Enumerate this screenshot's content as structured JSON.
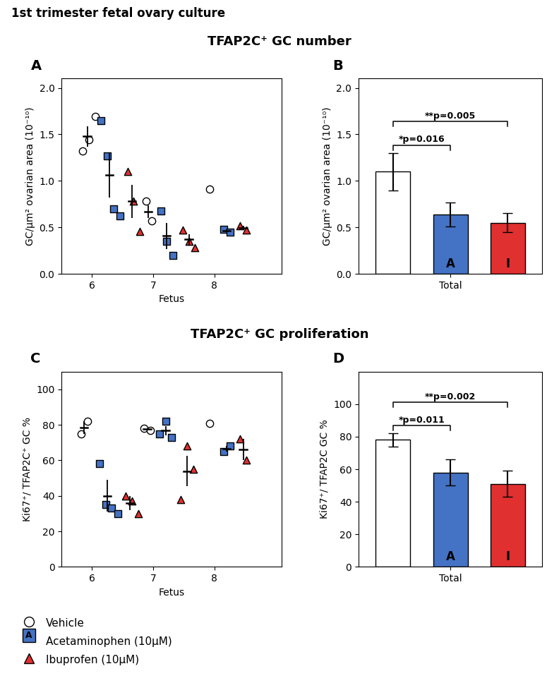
{
  "title": "1st trimester fetal ovary culture",
  "chart_data": [
    {
      "type": "scatter",
      "panel_label": "A",
      "subtitle": "TFAP2C⁺ GC number",
      "x_label": "Fetus",
      "y_label": "GC/μm² ovarian area (10⁻¹⁰)",
      "xlim": [
        5.5,
        9.1
      ],
      "ylim": [
        0,
        2.1
      ],
      "xticks": [
        6,
        7,
        8
      ],
      "yticks": [
        {
          "value": 0,
          "label": "0.0"
        },
        {
          "value": 0.5,
          "label": "0.5"
        },
        {
          "value": 1.0,
          "label": "1.0"
        },
        {
          "value": 1.5,
          "label": "1.5"
        },
        {
          "value": 2.0,
          "label": "2.0"
        }
      ],
      "legend": "lower left",
      "series": [
        {
          "name": "Vehicle",
          "color": "#ffffff",
          "marker": "circle",
          "groups": [
            {
              "x": [
                5.85,
                5.95,
                6.05
              ],
              "y": [
                1.32,
                1.44,
                1.69
              ],
              "mean_x": 5.92,
              "mean": 1.48,
              "error": 0.11
            },
            {
              "x": [
                6.88,
                6.97
              ],
              "y": [
                0.78,
                0.57
              ],
              "mean_x": 6.92,
              "mean": 0.67,
              "error": 0.07
            },
            {
              "x": [
                7.92
              ],
              "y": [
                0.91
              ]
            }
          ]
        },
        {
          "name": "Acetaminophen (10μM)",
          "color": "#4472c4",
          "marker": "square",
          "symbol": "A",
          "groups": [
            {
              "x": [
                6.15,
                6.25,
                6.35,
                6.45
              ],
              "y": [
                1.65,
                1.27,
                0.7,
                0.62
              ],
              "mean_x": 6.28,
              "mean": 1.06,
              "error": 0.24
            },
            {
              "x": [
                7.12,
                7.22,
                7.32
              ],
              "y": [
                0.68,
                0.35,
                0.2
              ],
              "mean_x": 7.22,
              "mean": 0.41,
              "error": 0.14
            },
            {
              "x": [
                8.15,
                8.25
              ],
              "y": [
                0.48,
                0.45
              ],
              "mean_x": 8.2,
              "mean": 0.465,
              "error": 0.015
            }
          ]
        },
        {
          "name": "Ibuprofen (10μM)",
          "color": "#e03030",
          "marker": "triangle",
          "groups": [
            {
              "x": [
                6.58,
                6.68,
                6.78
              ],
              "y": [
                1.1,
                0.78,
                0.46
              ],
              "mean_x": 6.65,
              "mean": 0.78,
              "error": 0.18
            },
            {
              "x": [
                7.48,
                7.58,
                7.68
              ],
              "y": [
                0.47,
                0.35,
                0.28
              ],
              "mean_x": 7.58,
              "mean": 0.37,
              "error": 0.055
            },
            {
              "x": [
                8.42,
                8.52
              ],
              "y": [
                0.52,
                0.47
              ],
              "mean_x": 8.47,
              "mean": 0.495,
              "error": 0.025
            }
          ]
        }
      ]
    },
    {
      "type": "bar",
      "panel_label": "B",
      "y_label": "GC/μm² ovarian area (10⁻¹⁰)",
      "categories": [
        null,
        "Total",
        null
      ],
      "values": [
        1.1,
        0.64,
        0.55
      ],
      "errors": [
        0.2,
        0.13,
        0.1
      ],
      "colors": [
        "#ffffff",
        "#4472c4",
        "#e03030"
      ],
      "ylim": [
        0,
        2.1
      ],
      "yticks": [
        {
          "value": 0,
          "label": "0.0"
        },
        {
          "value": 0.5,
          "label": "0.5"
        },
        {
          "value": 1.0,
          "label": "1.0"
        },
        {
          "value": 1.5,
          "label": "1.5"
        },
        {
          "value": 2.0,
          "label": "2.0"
        }
      ],
      "annotations": [
        {
          "text": "A",
          "category": 1
        },
        {
          "text": "I",
          "category": 2
        },
        {
          "text": "*p=0.016",
          "between": [
            0,
            1
          ]
        },
        {
          "text": "**p=0.005",
          "between": [
            0,
            2
          ]
        }
      ]
    },
    {
      "type": "scatter",
      "panel_label": "C",
      "subtitle": "TFAP2C⁺ GC proliferation",
      "x_label": "Fetus",
      "y_label": "Ki67⁺/ TFAP2C⁺ GC %",
      "xlim": [
        5.5,
        9.1
      ],
      "ylim": [
        0,
        110
      ],
      "xticks": [
        6,
        7,
        8
      ],
      "yticks": [
        0,
        20,
        40,
        60,
        80,
        100
      ],
      "series": [
        {
          "name": "Vehicle",
          "color": "#ffffff",
          "marker": "circle",
          "groups": [
            {
              "x": [
                5.82,
                5.92
              ],
              "y": [
                75.0,
                82.0
              ],
              "mean_x": 5.87,
              "mean": 78.5,
              "error": 3.5
            },
            {
              "x": [
                6.85,
                6.95
              ],
              "y": [
                78.0,
                77.0
              ],
              "mean_x": 6.9,
              "mean": 77.5,
              "error": 0.5
            },
            {
              "x": [
                7.92
              ],
              "y": [
                81.0
              ]
            }
          ]
        },
        {
          "name": "Acetaminophen (10μM)",
          "color": "#4472c4",
          "marker": "square",
          "groups": [
            {
              "x": [
                6.12,
                6.22,
                6.32,
                6.42
              ],
              "y": [
                58.0,
                35.0,
                33.0,
                30.0
              ],
              "mean_x": 6.25,
              "mean": 40.0,
              "error": 9.0
            },
            {
              "x": [
                7.1,
                7.2,
                7.3
              ],
              "y": [
                75.0,
                82.0,
                73.0
              ],
              "mean_x": 7.2,
              "mean": 76.7,
              "error": 2.7
            },
            {
              "x": [
                8.15,
                8.25
              ],
              "y": [
                65.0,
                68.0
              ],
              "mean_x": 8.2,
              "mean": 66.5,
              "error": 1.5
            }
          ]
        },
        {
          "name": "Ibuprofen (10μM)",
          "color": "#e03030",
          "marker": "triangle",
          "groups": [
            {
              "x": [
                6.55,
                6.65,
                6.75
              ],
              "y": [
                40.0,
                37.0,
                30.0
              ],
              "mean_x": 6.62,
              "mean": 36.0,
              "error": 4.0
            },
            {
              "x": [
                7.45,
                7.55,
                7.65
              ],
              "y": [
                38.0,
                68.0,
                55.0
              ],
              "mean_x": 7.55,
              "mean": 54.0,
              "error": 8.7
            },
            {
              "x": [
                8.42,
                8.52
              ],
              "y": [
                72.0,
                60.0
              ],
              "mean_x": 8.47,
              "mean": 66.0,
              "error": 6.0
            }
          ]
        }
      ]
    },
    {
      "type": "bar",
      "panel_label": "D",
      "y_label": "Ki67⁺/ TFAP2C GC %",
      "categories": [
        null,
        "Total",
        null
      ],
      "values": [
        78.0,
        58.0,
        51.0
      ],
      "errors": [
        4.0,
        8.0,
        8.0
      ],
      "colors": [
        "#ffffff",
        "#4472c4",
        "#e03030"
      ],
      "ylim": [
        0,
        120
      ],
      "yticks": [
        0,
        20,
        40,
        60,
        80,
        100
      ],
      "annotations": [
        {
          "text": "A",
          "category": 1
        },
        {
          "text": "I",
          "category": 2
        },
        {
          "text": "*p=0.011",
          "between": [
            0,
            1
          ]
        },
        {
          "text": "**p=0.002",
          "between": [
            0,
            2
          ]
        }
      ]
    }
  ]
}
